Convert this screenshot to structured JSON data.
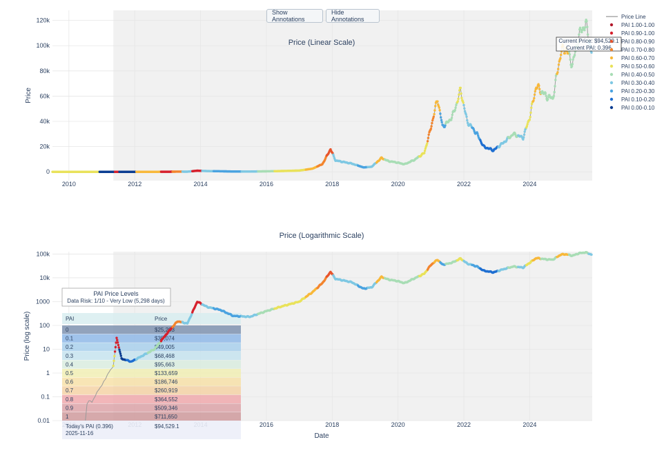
{
  "buttons": {
    "show": "Show Annotations",
    "hide": "Hide Annotations"
  },
  "legend": {
    "price_line": "Price Line",
    "bands": [
      {
        "label": "PAI 1.00-1.00",
        "color": "#b2182b"
      },
      {
        "label": "PAI 0.90-1.00",
        "color": "#d6202d"
      },
      {
        "label": "PAI 0.80-0.90",
        "color": "#e8542c"
      },
      {
        "label": "PAI 0.70-0.80",
        "color": "#f3852e"
      },
      {
        "label": "PAI 0.60-0.70",
        "color": "#f8b83a"
      },
      {
        "label": "PAI 0.50-0.60",
        "color": "#e9e25a"
      },
      {
        "label": "PAI 0.40-0.50",
        "color": "#a8ddb5"
      },
      {
        "label": "PAI 0.30-0.40",
        "color": "#7fc8e3"
      },
      {
        "label": "PAI 0.20-0.30",
        "color": "#4aa3e0"
      },
      {
        "label": "PAI 0.10-0.20",
        "color": "#1f6fd1"
      },
      {
        "label": "PAI 0.00-0.10",
        "color": "#0b3d91"
      }
    ]
  },
  "annotation": {
    "line1": "Current Price: $94,529.1",
    "line2": "Current PAI: 0.396"
  },
  "pai_table": {
    "title": "PAI Price Levels",
    "subtitle": "Data Risk: 1/10 - Very Low (5,298 days)",
    "headers": [
      "PAI",
      "Price"
    ],
    "rows": [
      {
        "pai": "0",
        "price": "$25,203",
        "color": "#7f93b0"
      },
      {
        "pai": "0.1",
        "price": "$35,074",
        "color": "#8fb8e8"
      },
      {
        "pai": "0.2",
        "price": "$49,005",
        "color": "#a9d0ec"
      },
      {
        "pai": "0.3",
        "price": "$68,468",
        "color": "#c6e3ee"
      },
      {
        "pai": "0.4",
        "price": "$95,663",
        "color": "#d9ecdf"
      },
      {
        "pai": "0.5",
        "price": "$133,659",
        "color": "#f1efb4"
      },
      {
        "pai": "0.6",
        "price": "$186,746",
        "color": "#f7e0a8"
      },
      {
        "pai": "0.7",
        "price": "$260,919",
        "color": "#f5d2a6"
      },
      {
        "pai": "0.8",
        "price": "$364,552",
        "color": "#f0a9ad"
      },
      {
        "pai": "0.9",
        "price": "$509,346",
        "color": "#dca3a8"
      },
      {
        "pai": "1",
        "price": "$711,650",
        "color": "#cf9a9c"
      }
    ],
    "today_label": "Today's PAI (0.396)",
    "today_date": "2025-11-16",
    "today_price": "$94,529.1"
  },
  "chart_data": [
    {
      "type": "scatter",
      "title": "Price (Linear Scale)",
      "xlabel": "",
      "ylabel": "Price",
      "xlim": [
        2009.5,
        2025.9
      ],
      "ylim": [
        -7000,
        128000
      ],
      "x_ticks": [
        2010,
        2012,
        2014,
        2016,
        2018,
        2020,
        2022,
        2024
      ],
      "y_ticks": [
        0,
        20000,
        40000,
        60000,
        80000,
        100000,
        120000
      ],
      "y_tick_labels": [
        "0",
        "20k",
        "40k",
        "60k",
        "80k",
        "100k",
        "120k"
      ],
      "shaded_from": 2011.35,
      "series_x": [
        2009.5,
        2010.5,
        2011.35,
        2011.45,
        2011.6,
        2011.9,
        2012.2,
        2012.6,
        2013.0,
        2013.3,
        2013.6,
        2013.9,
        2014.2,
        2014.6,
        2015.0,
        2015.5,
        2016.0,
        2016.5,
        2017.0,
        2017.4,
        2017.7,
        2017.95,
        2018.1,
        2018.3,
        2018.6,
        2018.95,
        2019.2,
        2019.5,
        2019.7,
        2019.95,
        2020.2,
        2020.5,
        2020.8,
        2021.0,
        2021.2,
        2021.35,
        2021.55,
        2021.7,
        2021.9,
        2022.1,
        2022.4,
        2022.6,
        2022.9,
        2023.2,
        2023.5,
        2023.8,
        2024.0,
        2024.2,
        2024.5,
        2024.7,
        2024.95,
        2025.1,
        2025.3,
        2025.5,
        2025.7,
        2025.88
      ],
      "series_y": [
        0,
        0,
        1,
        15,
        3,
        4,
        6,
        10,
        50,
        150,
        120,
        900,
        600,
        450,
        250,
        230,
        400,
        650,
        1000,
        2500,
        6000,
        18000,
        9000,
        8000,
        6500,
        3500,
        4000,
        11000,
        8500,
        7500,
        6000,
        9500,
        15000,
        35000,
        58000,
        36000,
        40000,
        47000,
        65000,
        40000,
        30000,
        20000,
        17000,
        23000,
        30000,
        27000,
        43000,
        68000,
        60000,
        58000,
        95000,
        98000,
        85000,
        108000,
        118000,
        94529
      ],
      "series_pai": [
        0.5,
        0.5,
        0.05,
        0.95,
        0.05,
        0.05,
        0.6,
        0.62,
        0.9,
        0.75,
        0.3,
        0.95,
        0.3,
        0.2,
        0.2,
        0.3,
        0.4,
        0.5,
        0.55,
        0.65,
        0.7,
        0.85,
        0.35,
        0.3,
        0.3,
        0.2,
        0.35,
        0.6,
        0.4,
        0.4,
        0.4,
        0.45,
        0.55,
        0.75,
        0.65,
        0.25,
        0.4,
        0.45,
        0.55,
        0.3,
        0.25,
        0.12,
        0.15,
        0.3,
        0.45,
        0.35,
        0.55,
        0.6,
        0.45,
        0.4,
        0.6,
        0.6,
        0.4,
        0.45,
        0.45,
        0.396
      ]
    },
    {
      "type": "scatter",
      "title": "Price (Logarithmic Scale)",
      "xlabel": "Date",
      "ylabel": "Price (log scale)",
      "y_scale": "log",
      "xlim": [
        2009.5,
        2025.9
      ],
      "ylim_log10": [
        -2,
        5.1
      ],
      "x_ticks": [
        2010,
        2012,
        2014,
        2016,
        2018,
        2020,
        2022,
        2024
      ],
      "y_ticks": [
        0.01,
        0.1,
        1,
        10,
        100,
        1000,
        10000,
        100000
      ],
      "y_tick_labels": [
        "0.01",
        "0.1",
        "1",
        "10",
        "100",
        "1000",
        "10k",
        "100k"
      ],
      "shaded_from": 2011.35,
      "series_x": [
        2010.5,
        2010.55,
        2010.6,
        2010.7,
        2010.9,
        2011.0,
        2011.2,
        2011.35,
        2011.45,
        2011.6,
        2011.9,
        2012.2,
        2012.6,
        2013.0,
        2013.3,
        2013.6,
        2013.9,
        2014.2,
        2014.6,
        2015.0,
        2015.5,
        2016.0,
        2016.5,
        2017.0,
        2017.4,
        2017.7,
        2017.95,
        2018.1,
        2018.3,
        2018.6,
        2018.95,
        2019.2,
        2019.5,
        2019.7,
        2019.95,
        2020.2,
        2020.5,
        2020.8,
        2021.0,
        2021.2,
        2021.35,
        2021.55,
        2021.7,
        2021.9,
        2022.1,
        2022.4,
        2022.6,
        2022.9,
        2023.2,
        2023.5,
        2023.8,
        2024.0,
        2024.2,
        2024.5,
        2024.7,
        2024.95,
        2025.1,
        2025.3,
        2025.5,
        2025.7,
        2025.88
      ],
      "series_y": [
        0.01,
        0.05,
        0.07,
        0.06,
        0.2,
        0.3,
        1,
        2,
        30,
        4,
        3,
        5,
        10,
        50,
        150,
        120,
        1000,
        600,
        450,
        250,
        230,
        400,
        650,
        1000,
        2500,
        6000,
        18000,
        9000,
        8000,
        6500,
        3500,
        4000,
        11000,
        8500,
        7500,
        6000,
        9500,
        15000,
        35000,
        58000,
        36000,
        40000,
        47000,
        65000,
        40000,
        30000,
        20000,
        17000,
        23000,
        30000,
        27000,
        43000,
        68000,
        60000,
        58000,
        95000,
        98000,
        85000,
        108000,
        118000,
        94529
      ],
      "series_pai": [
        null,
        null,
        null,
        null,
        null,
        null,
        null,
        0.5,
        0.95,
        0.05,
        0.1,
        0.3,
        0.45,
        0.9,
        0.75,
        0.3,
        0.95,
        0.3,
        0.2,
        0.2,
        0.3,
        0.4,
        0.5,
        0.55,
        0.65,
        0.7,
        0.85,
        0.35,
        0.3,
        0.3,
        0.2,
        0.35,
        0.6,
        0.4,
        0.4,
        0.4,
        0.45,
        0.55,
        0.75,
        0.65,
        0.25,
        0.4,
        0.45,
        0.55,
        0.3,
        0.25,
        0.12,
        0.15,
        0.3,
        0.45,
        0.35,
        0.55,
        0.6,
        0.45,
        0.4,
        0.6,
        0.6,
        0.4,
        0.45,
        0.45,
        0.396
      ]
    }
  ]
}
